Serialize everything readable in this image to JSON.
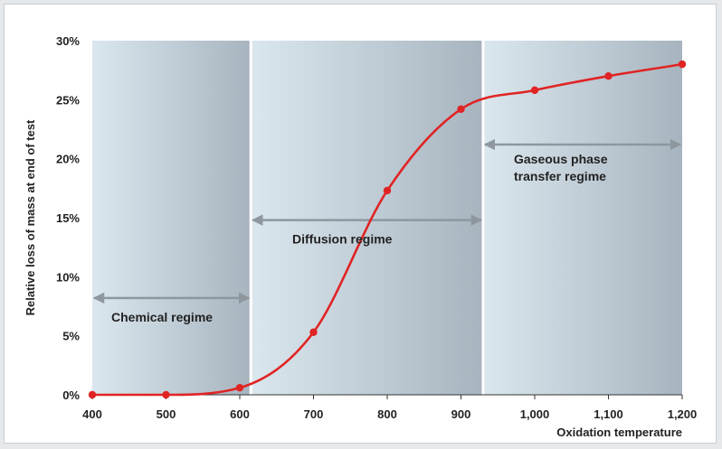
{
  "chart_data": {
    "type": "line",
    "title": "",
    "xlabel": "Oxidation temperature",
    "ylabel": "Relative  loss of mass at end of test",
    "xlim": [
      400,
      1200
    ],
    "ylim": [
      0,
      30
    ],
    "x_ticks": [
      400,
      500,
      600,
      700,
      800,
      900,
      1000,
      1100,
      1200
    ],
    "x_tick_labels": [
      "400",
      "500",
      "600",
      "700",
      "800",
      "900",
      "1,000",
      "1,100",
      "1,200"
    ],
    "y_ticks": [
      0,
      5,
      10,
      15,
      20,
      25,
      30
    ],
    "y_tick_labels": [
      "0%",
      "5%",
      "10%",
      "15%",
      "20%",
      "25%",
      "30%"
    ],
    "grid": false,
    "series": [
      {
        "color": "#e02424",
        "x": [
          400,
          500,
          600,
          700,
          800,
          900,
          1000,
          1100,
          1200
        ],
        "y": [
          0,
          0,
          0.6,
          5.3,
          17.3,
          24.2,
          25.8,
          27.0,
          28.0
        ]
      }
    ],
    "regions": [
      {
        "label": "Chemical regime",
        "x_start": 400,
        "x_end": 615,
        "arrow_y": 8.2
      },
      {
        "label": "Diffusion regime",
        "x_start": 615,
        "x_end": 930,
        "arrow_y": 14.8
      },
      {
        "label": "Gaseous phase transfer regime",
        "label_lines": [
          "Gaseous phase",
          "transfer regime"
        ],
        "x_start": 930,
        "x_end": 1200,
        "arrow_y": 21.2
      }
    ],
    "colors": {
      "line": "#e02424",
      "arrow": "#8e979e",
      "panel_light": "#dbe6ec",
      "panel_dark": "#a9b6c0"
    }
  }
}
